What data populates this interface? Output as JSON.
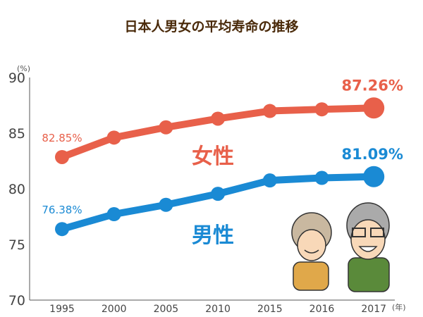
{
  "chart_data": {
    "type": "line",
    "title": "日本人男女の平均寿命の推移",
    "ylabel": "(%)",
    "xlabel": "(年)",
    "categories": [
      "1995",
      "2000",
      "2005",
      "2010",
      "2015",
      "2016",
      "2017"
    ],
    "ylim": [
      70,
      90
    ],
    "yticks": [
      70,
      75,
      80,
      85,
      90
    ],
    "grid": false,
    "series": [
      {
        "name": "女性",
        "color": "#e8604a",
        "values": [
          82.85,
          84.6,
          85.52,
          86.3,
          86.99,
          87.14,
          87.26
        ],
        "start_label": "82.85%",
        "end_label": "87.26%"
      },
      {
        "name": "男性",
        "color": "#1a8ad4",
        "values": [
          76.38,
          77.72,
          78.56,
          79.55,
          80.75,
          80.98,
          81.09
        ],
        "start_label": "76.38%",
        "end_label": "81.09%"
      }
    ],
    "colors": {
      "title": "#4a2a0a",
      "axis": "#555555"
    }
  }
}
